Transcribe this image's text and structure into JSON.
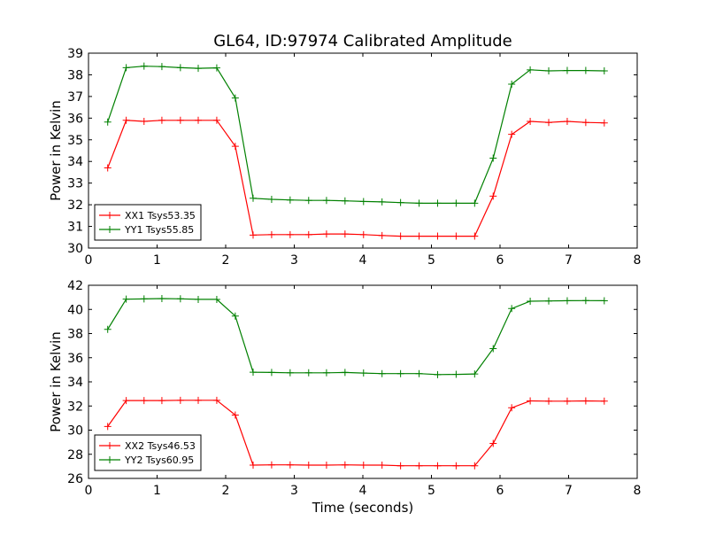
{
  "figure": {
    "title": "GL64, ID:97974 Calibrated Amplitude",
    "xlabel": "Time (seconds)"
  },
  "chart_data": [
    {
      "type": "line",
      "title": "GL64, ID:97974 Calibrated Amplitude",
      "xlabel": "",
      "ylabel": "Power in Kelvin",
      "xlim": [
        0,
        8
      ],
      "ylim": [
        30,
        39
      ],
      "xticks": [
        "0",
        "1",
        "2",
        "3",
        "4",
        "5",
        "6",
        "7",
        "8"
      ],
      "yticks": [
        "30",
        "31",
        "32",
        "33",
        "34",
        "35",
        "36",
        "37",
        "38",
        "39"
      ],
      "grid": false,
      "legend_position": "lower-left",
      "x": [
        0.28,
        0.55,
        0.81,
        1.07,
        1.34,
        1.6,
        1.87,
        2.14,
        2.4,
        2.67,
        2.94,
        3.21,
        3.47,
        3.74,
        4.01,
        4.28,
        4.55,
        4.82,
        5.09,
        5.36,
        5.63,
        5.9,
        6.17,
        6.44,
        6.71,
        6.98,
        7.25,
        7.52
      ],
      "series": [
        {
          "name": "XX1 Tsys53.35",
          "color": "#ff0000",
          "values": [
            33.7,
            35.9,
            35.85,
            35.9,
            35.9,
            35.9,
            35.9,
            34.7,
            30.6,
            30.62,
            30.62,
            30.62,
            30.65,
            30.65,
            30.62,
            30.58,
            30.55,
            30.55,
            30.55,
            30.55,
            30.55,
            32.4,
            35.25,
            35.85,
            35.8,
            35.85,
            35.8,
            35.78
          ]
        },
        {
          "name": "YY1 Tsys55.85",
          "color": "#008000",
          "values": [
            35.82,
            38.33,
            38.4,
            38.38,
            38.33,
            38.3,
            38.32,
            36.93,
            32.3,
            32.25,
            32.22,
            32.2,
            32.2,
            32.18,
            32.15,
            32.13,
            32.1,
            32.07,
            32.07,
            32.07,
            32.07,
            34.15,
            37.57,
            38.23,
            38.18,
            38.2,
            38.2,
            38.18
          ]
        }
      ]
    },
    {
      "type": "line",
      "title": "",
      "xlabel": "Time (seconds)",
      "ylabel": "Power in Kelvin",
      "xlim": [
        0,
        8
      ],
      "ylim": [
        26,
        42
      ],
      "xticks": [
        "0",
        "1",
        "2",
        "3",
        "4",
        "5",
        "6",
        "7",
        "8"
      ],
      "yticks": [
        "26",
        "28",
        "30",
        "32",
        "34",
        "36",
        "38",
        "40",
        "42"
      ],
      "grid": false,
      "legend_position": "lower-left",
      "x": [
        0.28,
        0.55,
        0.81,
        1.07,
        1.34,
        1.6,
        1.87,
        2.14,
        2.4,
        2.67,
        2.94,
        3.21,
        3.47,
        3.74,
        4.01,
        4.28,
        4.55,
        4.82,
        5.09,
        5.36,
        5.63,
        5.9,
        6.17,
        6.44,
        6.71,
        6.98,
        7.25,
        7.52
      ],
      "series": [
        {
          "name": "XX2 Tsys46.53",
          "color": "#ff0000",
          "values": [
            30.3,
            32.45,
            32.45,
            32.45,
            32.47,
            32.47,
            32.47,
            31.25,
            27.1,
            27.12,
            27.12,
            27.1,
            27.1,
            27.12,
            27.1,
            27.1,
            27.05,
            27.05,
            27.05,
            27.05,
            27.05,
            28.9,
            31.85,
            32.42,
            32.4,
            32.4,
            32.42,
            32.4
          ]
        },
        {
          "name": "YY2 Tsys60.95",
          "color": "#008000",
          "values": [
            38.35,
            40.85,
            40.87,
            40.9,
            40.88,
            40.83,
            40.83,
            39.45,
            34.8,
            34.78,
            34.75,
            34.75,
            34.75,
            34.78,
            34.73,
            34.68,
            34.68,
            34.68,
            34.6,
            34.62,
            34.65,
            36.75,
            40.07,
            40.68,
            40.7,
            40.72,
            40.73,
            40.72
          ]
        }
      ]
    }
  ]
}
